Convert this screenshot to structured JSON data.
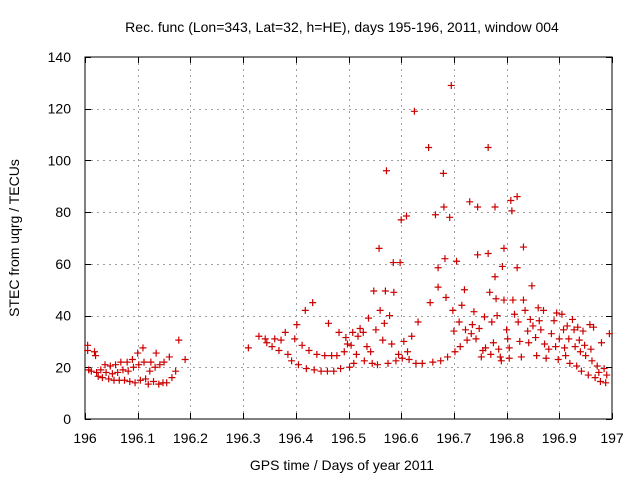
{
  "chart_data": {
    "type": "scatter",
    "title": "Rec. func (Lon=343, Lat=32, h=HE), days 195-196, 2011, window 004",
    "xlabel": "GPS time / Days of year 2011",
    "ylabel": "STEC from uqrg / TECUs",
    "xlim": [
      196,
      197
    ],
    "ylim": [
      0,
      140
    ],
    "xticks": [
      196,
      196.1,
      196.2,
      196.3,
      196.4,
      196.5,
      196.6,
      196.7,
      196.8,
      196.9,
      197
    ],
    "xtick_labels": [
      "196",
      "196.1",
      "196.2",
      "196.3",
      "196.4",
      "196.5",
      "196.6",
      "196.7",
      "196.8",
      "196.9",
      "197"
    ],
    "yticks": [
      0,
      20,
      40,
      60,
      80,
      100,
      120,
      140
    ],
    "ytick_labels": [
      "0",
      "20",
      "40",
      "60",
      "80",
      "100",
      "120",
      "140"
    ],
    "grid": true,
    "marker": "+",
    "color": "#cc0000",
    "series": [
      {
        "name": "STEC",
        "points": [
          [
            196.005,
            28.5
          ],
          [
            196.005,
            26.5
          ],
          [
            196.007,
            19.0
          ],
          [
            196.012,
            18.5
          ],
          [
            196.018,
            26.0
          ],
          [
            196.02,
            24.5
          ],
          [
            196.022,
            18.0
          ],
          [
            196.025,
            16.5
          ],
          [
            196.03,
            19.0
          ],
          [
            196.033,
            16.0
          ],
          [
            196.038,
            21.0
          ],
          [
            196.04,
            18.0
          ],
          [
            196.045,
            15.5
          ],
          [
            196.048,
            20.5
          ],
          [
            196.052,
            17.5
          ],
          [
            196.055,
            15.0
          ],
          [
            196.058,
            21.0
          ],
          [
            196.062,
            18.0
          ],
          [
            196.065,
            15.0
          ],
          [
            196.068,
            22.0
          ],
          [
            196.072,
            19.0
          ],
          [
            196.075,
            15.0
          ],
          [
            196.08,
            22.0
          ],
          [
            196.082,
            18.5
          ],
          [
            196.085,
            14.5
          ],
          [
            196.09,
            23.0
          ],
          [
            196.092,
            20.0
          ],
          [
            196.095,
            14.0
          ],
          [
            196.1,
            25.5
          ],
          [
            196.102,
            21.0
          ],
          [
            196.105,
            15.0
          ],
          [
            196.11,
            27.5
          ],
          [
            196.112,
            22.0
          ],
          [
            196.115,
            15.5
          ],
          [
            196.12,
            13.5
          ],
          [
            196.123,
            18.5
          ],
          [
            196.125,
            22.0
          ],
          [
            196.13,
            14.5
          ],
          [
            196.133,
            20.0
          ],
          [
            196.135,
            25.5
          ],
          [
            196.14,
            13.5
          ],
          [
            196.142,
            21.0
          ],
          [
            196.148,
            14.0
          ],
          [
            196.15,
            22.0
          ],
          [
            196.155,
            14.0
          ],
          [
            196.16,
            24.0
          ],
          [
            196.165,
            16.0
          ],
          [
            196.172,
            18.5
          ],
          [
            196.178,
            30.5
          ],
          [
            196.19,
            23.0
          ],
          [
            196.31,
            27.5
          ],
          [
            196.33,
            32.0
          ],
          [
            196.342,
            31.0
          ],
          [
            196.345,
            29.5
          ],
          [
            196.355,
            28.0
          ],
          [
            196.36,
            31.0
          ],
          [
            196.368,
            26.5
          ],
          [
            196.372,
            30.5
          ],
          [
            196.38,
            33.5
          ],
          [
            196.385,
            25.0
          ],
          [
            196.392,
            22.5
          ],
          [
            196.398,
            31.0
          ],
          [
            196.402,
            36.5
          ],
          [
            196.405,
            21.0
          ],
          [
            196.412,
            28.5
          ],
          [
            196.418,
            42.0
          ],
          [
            196.42,
            19.5
          ],
          [
            196.425,
            26.5
          ],
          [
            196.432,
            45.0
          ],
          [
            196.435,
            19.0
          ],
          [
            196.44,
            25.0
          ],
          [
            196.448,
            18.5
          ],
          [
            196.455,
            24.5
          ],
          [
            196.46,
            18.5
          ],
          [
            196.462,
            37.0
          ],
          [
            196.468,
            24.5
          ],
          [
            196.472,
            18.5
          ],
          [
            196.478,
            24.5
          ],
          [
            196.482,
            33.5
          ],
          [
            196.485,
            19.5
          ],
          [
            196.492,
            26.0
          ],
          [
            196.495,
            31.5
          ],
          [
            196.498,
            29.0
          ],
          [
            196.502,
            20.0
          ],
          [
            196.505,
            28.5
          ],
          [
            196.508,
            33.5
          ],
          [
            196.51,
            21.5
          ],
          [
            196.515,
            25.0
          ],
          [
            196.518,
            32.0
          ],
          [
            196.522,
            35.0
          ],
          [
            196.528,
            33.5
          ],
          [
            196.53,
            22.5
          ],
          [
            196.535,
            28.0
          ],
          [
            196.538,
            39.0
          ],
          [
            196.542,
            26.0
          ],
          [
            196.545,
            21.5
          ],
          [
            196.548,
            49.5
          ],
          [
            196.552,
            34.5
          ],
          [
            196.555,
            21.0
          ],
          [
            196.558,
            66.0
          ],
          [
            196.56,
            42.0
          ],
          [
            196.565,
            30.5
          ],
          [
            196.568,
            37.0
          ],
          [
            196.57,
            49.5
          ],
          [
            196.572,
            96.0
          ],
          [
            196.575,
            21.5
          ],
          [
            196.578,
            40.0
          ],
          [
            196.582,
            29.0
          ],
          [
            196.585,
            60.5
          ],
          [
            196.586,
            49.0
          ],
          [
            196.59,
            22.5
          ],
          [
            196.595,
            25.0
          ],
          [
            196.598,
            60.5
          ],
          [
            196.6,
            77.0
          ],
          [
            196.602,
            23.5
          ],
          [
            196.605,
            30.0
          ],
          [
            196.61,
            78.5
          ],
          [
            196.612,
            26.0
          ],
          [
            196.615,
            23.0
          ],
          [
            196.62,
            32.0
          ],
          [
            196.625,
            119.0
          ],
          [
            196.628,
            21.5
          ],
          [
            196.632,
            37.5
          ],
          [
            196.64,
            21.5
          ],
          [
            196.652,
            105.0
          ],
          [
            196.655,
            45.0
          ],
          [
            196.66,
            22.0
          ],
          [
            196.665,
            79.0
          ],
          [
            196.67,
            58.5
          ],
          [
            196.67,
            51.0
          ],
          [
            196.675,
            22.5
          ],
          [
            196.68,
            95.0
          ],
          [
            196.681,
            82.0
          ],
          [
            196.683,
            62.0
          ],
          [
            196.685,
            47.0
          ],
          [
            196.688,
            24.0
          ],
          [
            196.692,
            78.0
          ],
          [
            196.695,
            129.0
          ],
          [
            196.698,
            42.0
          ],
          [
            196.7,
            34.0
          ],
          [
            196.702,
            26.0
          ],
          [
            196.705,
            61.0
          ],
          [
            196.71,
            37.5
          ],
          [
            196.712,
            28.0
          ],
          [
            196.715,
            44.0
          ],
          [
            196.72,
            50.0
          ],
          [
            196.722,
            34.5
          ],
          [
            196.725,
            30.5
          ],
          [
            196.73,
            84.0
          ],
          [
            196.733,
            33.0
          ],
          [
            196.735,
            36.5
          ],
          [
            196.738,
            41.5
          ],
          [
            196.742,
            31.0
          ],
          [
            196.745,
            82.0
          ],
          [
            196.745,
            63.5
          ],
          [
            196.748,
            35.0
          ],
          [
            196.752,
            24.0
          ],
          [
            196.755,
            26.5
          ],
          [
            196.758,
            39.5
          ],
          [
            196.76,
            27.5
          ],
          [
            196.765,
            105.0
          ],
          [
            196.765,
            64.0
          ],
          [
            196.768,
            49.0
          ],
          [
            196.77,
            25.0
          ],
          [
            196.772,
            37.5
          ],
          [
            196.775,
            29.5
          ],
          [
            196.778,
            82.0
          ],
          [
            196.778,
            55.0
          ],
          [
            196.78,
            46.5
          ],
          [
            196.782,
            40.0
          ],
          [
            196.785,
            27.0
          ],
          [
            196.788,
            24.0
          ],
          [
            196.79,
            22.5
          ],
          [
            196.792,
            59.0
          ],
          [
            196.795,
            66.0
          ],
          [
            196.795,
            46.0
          ],
          [
            196.8,
            34.5
          ],
          [
            196.802,
            31.0
          ],
          [
            196.805,
            27.5
          ],
          [
            196.805,
            23.5
          ],
          [
            196.808,
            84.5
          ],
          [
            196.81,
            80.5
          ],
          [
            196.812,
            46.0
          ],
          [
            196.815,
            40.5
          ],
          [
            196.82,
            86.0
          ],
          [
            196.82,
            58.5
          ],
          [
            196.822,
            37.5
          ],
          [
            196.825,
            30.0
          ],
          [
            196.828,
            24.0
          ],
          [
            196.832,
            66.5
          ],
          [
            196.832,
            46.0
          ],
          [
            196.835,
            42.0
          ],
          [
            196.84,
            34.0
          ],
          [
            196.842,
            29.5
          ],
          [
            196.845,
            38.5
          ],
          [
            196.848,
            51.5
          ],
          [
            196.85,
            36.0
          ],
          [
            196.855,
            31.5
          ],
          [
            196.857,
            24.5
          ],
          [
            196.86,
            43.0
          ],
          [
            196.862,
            38.0
          ],
          [
            196.865,
            34.5
          ],
          [
            196.87,
            42.0
          ],
          [
            196.872,
            29.0
          ],
          [
            196.875,
            23.5
          ],
          [
            196.88,
            27.0
          ],
          [
            196.885,
            33.0
          ],
          [
            196.89,
            38.0
          ],
          [
            196.893,
            28.0
          ],
          [
            196.895,
            41.0
          ],
          [
            196.898,
            23.0
          ],
          [
            196.9,
            31.0
          ],
          [
            196.905,
            40.5
          ],
          [
            196.908,
            34.5
          ],
          [
            196.91,
            27.5
          ],
          [
            196.912,
            24.5
          ],
          [
            196.915,
            36.0
          ],
          [
            196.918,
            31.0
          ],
          [
            196.92,
            21.5
          ],
          [
            196.925,
            38.5
          ],
          [
            196.928,
            34.5
          ],
          [
            196.93,
            28.0
          ],
          [
            196.933,
            20.5
          ],
          [
            196.935,
            35.5
          ],
          [
            196.938,
            30.5
          ],
          [
            196.94,
            26.0
          ],
          [
            196.942,
            18.5
          ],
          [
            196.945,
            34.0
          ],
          [
            196.948,
            28.5
          ],
          [
            196.95,
            24.5
          ],
          [
            196.955,
            17.0
          ],
          [
            196.958,
            36.5
          ],
          [
            196.96,
            27.0
          ],
          [
            196.962,
            22.5
          ],
          [
            196.965,
            35.5
          ],
          [
            196.968,
            16.0
          ],
          [
            196.972,
            20.5
          ],
          [
            196.975,
            18.0
          ],
          [
            196.978,
            14.5
          ],
          [
            196.98,
            29.5
          ],
          [
            196.985,
            19.5
          ],
          [
            196.988,
            14.0
          ],
          [
            196.99,
            17.0
          ],
          [
            196.995,
            33.0
          ]
        ]
      }
    ]
  }
}
